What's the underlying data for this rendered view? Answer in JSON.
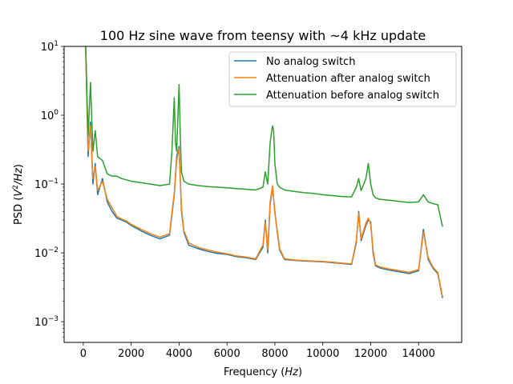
{
  "chart_data": {
    "type": "line",
    "title": "100 Hz sine wave from teensy with ~4 kHz update",
    "xlabel": "Frequency",
    "xlabel_unit": "Hz",
    "ylabel": "PSD",
    "ylabel_unit_base": "V",
    "ylabel_unit_exp": "2",
    "ylabel_unit_tail": "/Hz",
    "xlim": [
      -800,
      15800
    ],
    "ylim": [
      0.0005,
      10
    ],
    "yscale": "log",
    "grid": false,
    "legend_position": "top-right",
    "x_ticks": [
      0,
      2000,
      4000,
      6000,
      8000,
      10000,
      12000,
      14000
    ],
    "y_ticks": [
      {
        "value": 0.001,
        "base": "10",
        "exp": "−3"
      },
      {
        "value": 0.01,
        "base": "10",
        "exp": "−2"
      },
      {
        "value": 0.1,
        "base": "10",
        "exp": "−1"
      },
      {
        "value": 1,
        "base": "10",
        "exp": "0"
      },
      {
        "value": 10,
        "base": "10",
        "exp": "1"
      }
    ],
    "series": [
      {
        "name": "No analog switch",
        "color": "#1f77b4",
        "x": [
          100,
          200,
          300,
          400,
          500,
          600,
          800,
          1000,
          1200,
          1400,
          1600,
          1800,
          2000,
          2400,
          2800,
          3200,
          3600,
          3800,
          3900,
          4000,
          4100,
          4200,
          4400,
          4800,
          5200,
          5600,
          6000,
          6400,
          6800,
          7200,
          7500,
          7600,
          7700,
          7800,
          7900,
          8000,
          8100,
          8200,
          8400,
          8800,
          9200,
          9600,
          10000,
          10400,
          10800,
          11200,
          11400,
          11500,
          11600,
          11800,
          11900,
          12000,
          12100,
          12200,
          12400,
          12800,
          13200,
          13600,
          14000,
          14200,
          14400,
          14600,
          14800,
          15000
        ],
        "y": [
          10,
          0.25,
          0.8,
          0.1,
          0.2,
          0.07,
          0.12,
          0.055,
          0.04,
          0.032,
          0.03,
          0.028,
          0.025,
          0.021,
          0.018,
          0.016,
          0.018,
          0.07,
          0.25,
          0.35,
          0.04,
          0.02,
          0.013,
          0.0115,
          0.0105,
          0.0098,
          0.0095,
          0.0088,
          0.0085,
          0.008,
          0.012,
          0.03,
          0.01,
          0.05,
          0.09,
          0.04,
          0.02,
          0.011,
          0.008,
          0.0078,
          0.0076,
          0.0075,
          0.0074,
          0.0072,
          0.007,
          0.0068,
          0.014,
          0.04,
          0.015,
          0.025,
          0.03,
          0.028,
          0.01,
          0.0065,
          0.006,
          0.0056,
          0.0053,
          0.005,
          0.0055,
          0.022,
          0.008,
          0.006,
          0.005,
          0.0022
        ]
      },
      {
        "name": "Attenuation after analog switch",
        "color": "#ff7f0e",
        "x": [
          100,
          200,
          300,
          400,
          500,
          600,
          800,
          1000,
          1200,
          1400,
          1600,
          1800,
          2000,
          2400,
          2800,
          3200,
          3600,
          3800,
          3900,
          4000,
          4100,
          4200,
          4400,
          4800,
          5200,
          5600,
          6000,
          6400,
          6800,
          7200,
          7500,
          7600,
          7700,
          7800,
          7900,
          8000,
          8100,
          8200,
          8400,
          8800,
          9200,
          9600,
          10000,
          10400,
          10800,
          11200,
          11400,
          11500,
          11600,
          11800,
          11900,
          12000,
          12100,
          12200,
          12400,
          12800,
          13200,
          13600,
          14000,
          14200,
          14400,
          14600,
          14800,
          15000
        ],
        "y": [
          9,
          0.3,
          0.7,
          0.12,
          0.18,
          0.08,
          0.11,
          0.06,
          0.045,
          0.034,
          0.031,
          0.029,
          0.026,
          0.022,
          0.019,
          0.017,
          0.019,
          0.075,
          0.22,
          0.33,
          0.045,
          0.021,
          0.014,
          0.012,
          0.011,
          0.0102,
          0.0097,
          0.009,
          0.0087,
          0.0082,
          0.013,
          0.028,
          0.011,
          0.055,
          0.095,
          0.038,
          0.021,
          0.0115,
          0.0082,
          0.0079,
          0.0077,
          0.0076,
          0.0075,
          0.0073,
          0.0071,
          0.0069,
          0.015,
          0.038,
          0.016,
          0.027,
          0.032,
          0.026,
          0.011,
          0.0067,
          0.0062,
          0.0058,
          0.0055,
          0.0052,
          0.0057,
          0.02,
          0.0085,
          0.0062,
          0.0052,
          0.0023
        ]
      },
      {
        "name": "Attenuation before analog switch",
        "color": "#2ca02c",
        "x": [
          100,
          200,
          300,
          400,
          500,
          600,
          800,
          1000,
          1200,
          1400,
          1600,
          1800,
          2000,
          2400,
          2800,
          3200,
          3600,
          3700,
          3800,
          3850,
          3900,
          4000,
          4050,
          4100,
          4200,
          4400,
          4800,
          5200,
          5600,
          6000,
          6400,
          6800,
          7200,
          7500,
          7600,
          7700,
          7800,
          7900,
          7950,
          8000,
          8100,
          8200,
          8400,
          8800,
          9200,
          9600,
          10000,
          10400,
          10800,
          11200,
          11400,
          11500,
          11600,
          11800,
          11900,
          12000,
          12100,
          12200,
          12400,
          12800,
          13200,
          13600,
          14000,
          14200,
          14400,
          14600,
          14800,
          15000
        ],
        "y": [
          10,
          0.5,
          3,
          0.3,
          0.6,
          0.25,
          0.22,
          0.14,
          0.13,
          0.13,
          0.12,
          0.115,
          0.11,
          0.105,
          0.1,
          0.095,
          0.1,
          0.3,
          1.8,
          0.4,
          0.3,
          2.8,
          0.5,
          0.15,
          0.11,
          0.1,
          0.095,
          0.092,
          0.09,
          0.088,
          0.086,
          0.084,
          0.082,
          0.09,
          0.15,
          0.1,
          0.4,
          0.7,
          0.6,
          0.2,
          0.1,
          0.09,
          0.082,
          0.078,
          0.075,
          0.073,
          0.07,
          0.068,
          0.066,
          0.065,
          0.09,
          0.12,
          0.08,
          0.12,
          0.2,
          0.1,
          0.07,
          0.063,
          0.06,
          0.058,
          0.056,
          0.054,
          0.055,
          0.07,
          0.055,
          0.052,
          0.05,
          0.024
        ]
      }
    ]
  }
}
